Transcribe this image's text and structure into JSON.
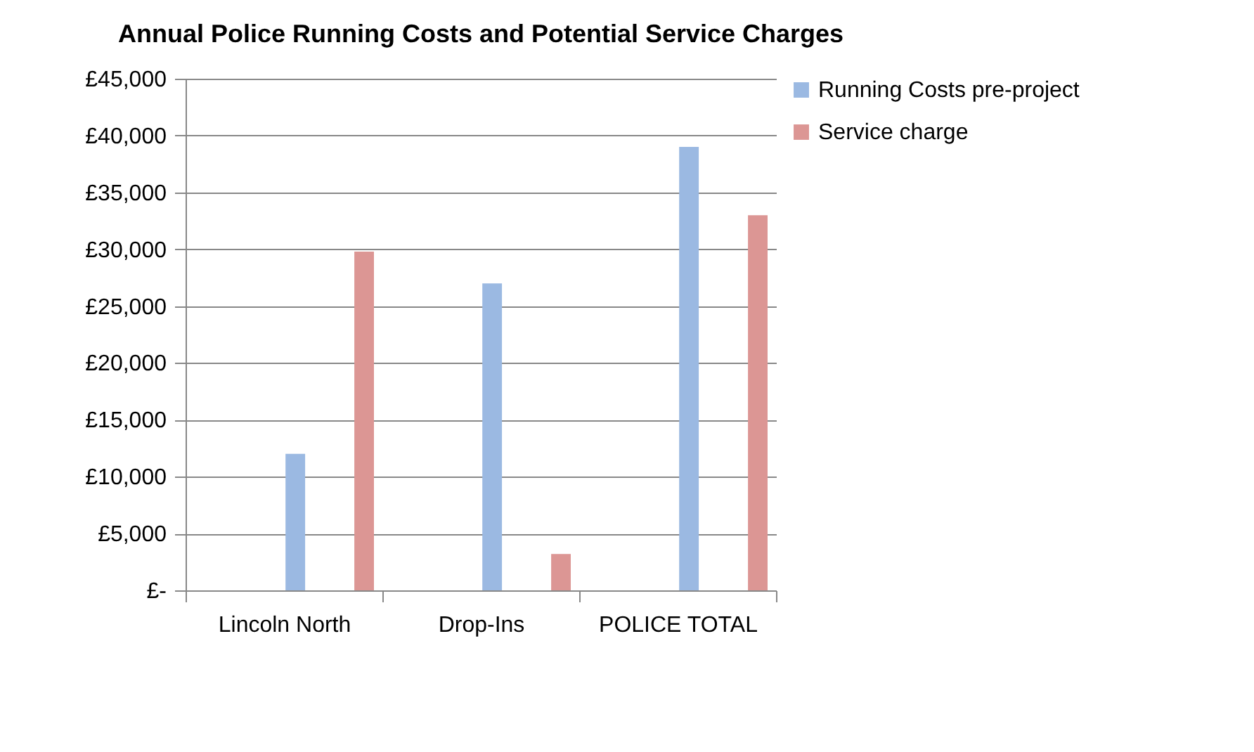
{
  "chart_data": {
    "type": "bar",
    "title": "Annual Police Running Costs and Potential Service Charges",
    "categories": [
      "Lincoln North",
      "Drop-Ins",
      "POLICE TOTAL"
    ],
    "series": [
      {
        "name": "Running Costs pre-project",
        "color": "#9bb9e2",
        "values": [
          12000,
          27000,
          39000
        ]
      },
      {
        "name": "Service charge",
        "color": "#dc9694",
        "values": [
          29800,
          3200,
          33000
        ]
      }
    ],
    "ylim": [
      0,
      45000
    ],
    "yticks": [
      {
        "value": 0,
        "label": "£-"
      },
      {
        "value": 5000,
        "label": "£5,000"
      },
      {
        "value": 10000,
        "label": "£10,000"
      },
      {
        "value": 15000,
        "label": "£15,000"
      },
      {
        "value": 20000,
        "label": "£20,000"
      },
      {
        "value": 25000,
        "label": "£25,000"
      },
      {
        "value": 30000,
        "label": "£30,000"
      },
      {
        "value": 35000,
        "label": "£35,000"
      },
      {
        "value": 40000,
        "label": "£40,000"
      },
      {
        "value": 45000,
        "label": "£45,000"
      }
    ],
    "grid": "y",
    "legend": "right"
  }
}
